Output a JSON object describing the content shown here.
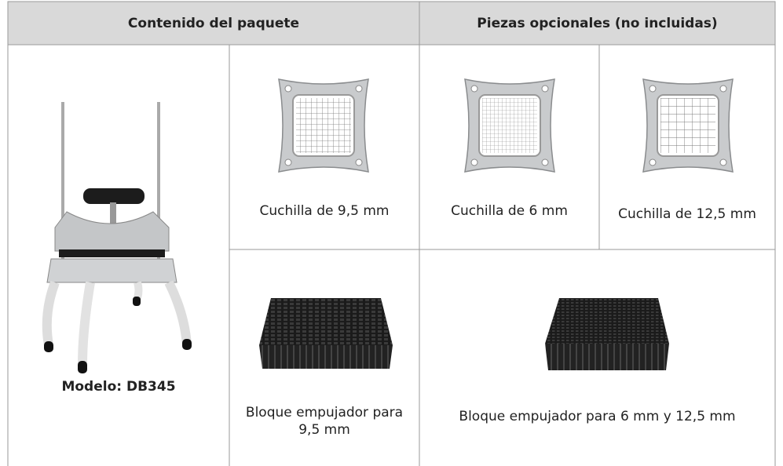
{
  "table": {
    "header": [
      "Contenido del paquete",
      "Piezas opcionales (no incluidas)"
    ],
    "model": "Modelo: DB345",
    "blades": [
      "Cuchilla de 9,5 mm",
      "Cuchilla de 6 mm",
      "Cuchilla de 12,5 mm"
    ],
    "pushers": [
      "Bloque empujador para 9,5 mm",
      "Bloque empujador para 6 mm y 12,5 mm"
    ]
  }
}
